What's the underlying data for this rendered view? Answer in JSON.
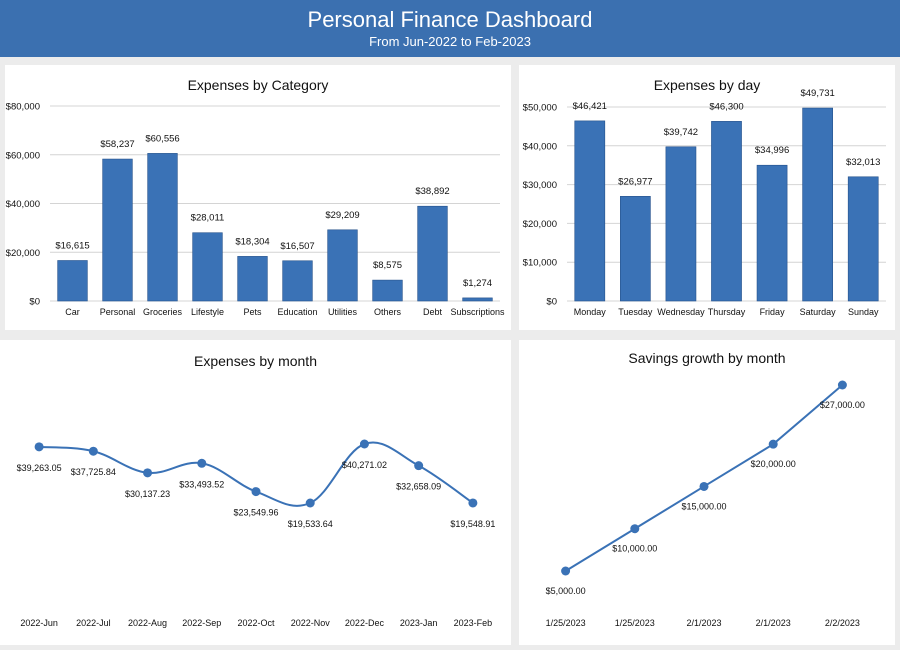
{
  "header": {
    "title": "Personal Finance Dashboard",
    "subtitle": "From Jun-2022 to Feb-2023"
  },
  "colors": {
    "header_bg": "#3b70b0",
    "bar": "#3a72b6",
    "line": "#3a72b6",
    "background": "#ececec"
  },
  "chart_data": [
    {
      "type": "bar",
      "title": "Expenses by Category",
      "categories": [
        "Car",
        "Personal",
        "Groceries",
        "Lifestyle",
        "Pets",
        "Education",
        "Utilities",
        "Others",
        "Debt",
        "Subscriptions"
      ],
      "values": [
        16615,
        58237,
        60556,
        28011,
        18304,
        16507,
        29209,
        8575,
        38892,
        1274
      ],
      "value_labels": [
        "$16,615",
        "$58,237",
        "$60,556",
        "$28,011",
        "$18,304",
        "$16,507",
        "$29,209",
        "$8,575",
        "$38,892",
        "$1,274"
      ],
      "yticks": [
        "$0",
        "$20,000",
        "$40,000",
        "$60,000",
        "$80,000"
      ],
      "ylim": [
        0,
        80000
      ],
      "grid": true
    },
    {
      "type": "bar",
      "title": "Expenses by day",
      "categories": [
        "Monday",
        "Tuesday",
        "Wednesday",
        "Thursday",
        "Friday",
        "Saturday",
        "Sunday"
      ],
      "values": [
        46421,
        26977,
        39742,
        46300,
        34996,
        49731,
        32013
      ],
      "value_labels": [
        "$46,421",
        "$26,977",
        "$39,742",
        "$46,300",
        "$34,996",
        "$49,731",
        "$32,013"
      ],
      "yticks": [
        "$0",
        "$10,000",
        "$20,000",
        "$30,000",
        "$40,000",
        "$50,000"
      ],
      "ylim": [
        0,
        50000
      ],
      "grid": true
    },
    {
      "type": "line",
      "title": "Expenses by month",
      "categories": [
        "2022-Jun",
        "2022-Jul",
        "2022-Aug",
        "2022-Sep",
        "2022-Oct",
        "2022-Nov",
        "2022-Dec",
        "2023-Jan",
        "2023-Feb"
      ],
      "values": [
        39263.05,
        37725.84,
        30137.23,
        33493.52,
        23549.96,
        19533.64,
        40271.02,
        32658.09,
        19548.91
      ],
      "value_labels": [
        "$39,263.05",
        "$37,725.84",
        "$30,137.23",
        "$33,493.52",
        "$23,549.96",
        "$19,533.64",
        "$40,271.02",
        "$32,658.09",
        "$19,548.91"
      ],
      "smooth": true,
      "grid": false
    },
    {
      "type": "line",
      "title": "Savings growth by month",
      "categories": [
        "1/25/2023",
        "1/25/2023",
        "2/1/2023",
        "2/1/2023",
        "2/2/2023"
      ],
      "values": [
        5000,
        10000,
        15000,
        20000,
        27000
      ],
      "value_labels": [
        "$5,000.00",
        "$10,000.00",
        "$15,000.00",
        "$20,000.00",
        "$27,000.00"
      ],
      "smooth": false,
      "grid": false
    }
  ]
}
